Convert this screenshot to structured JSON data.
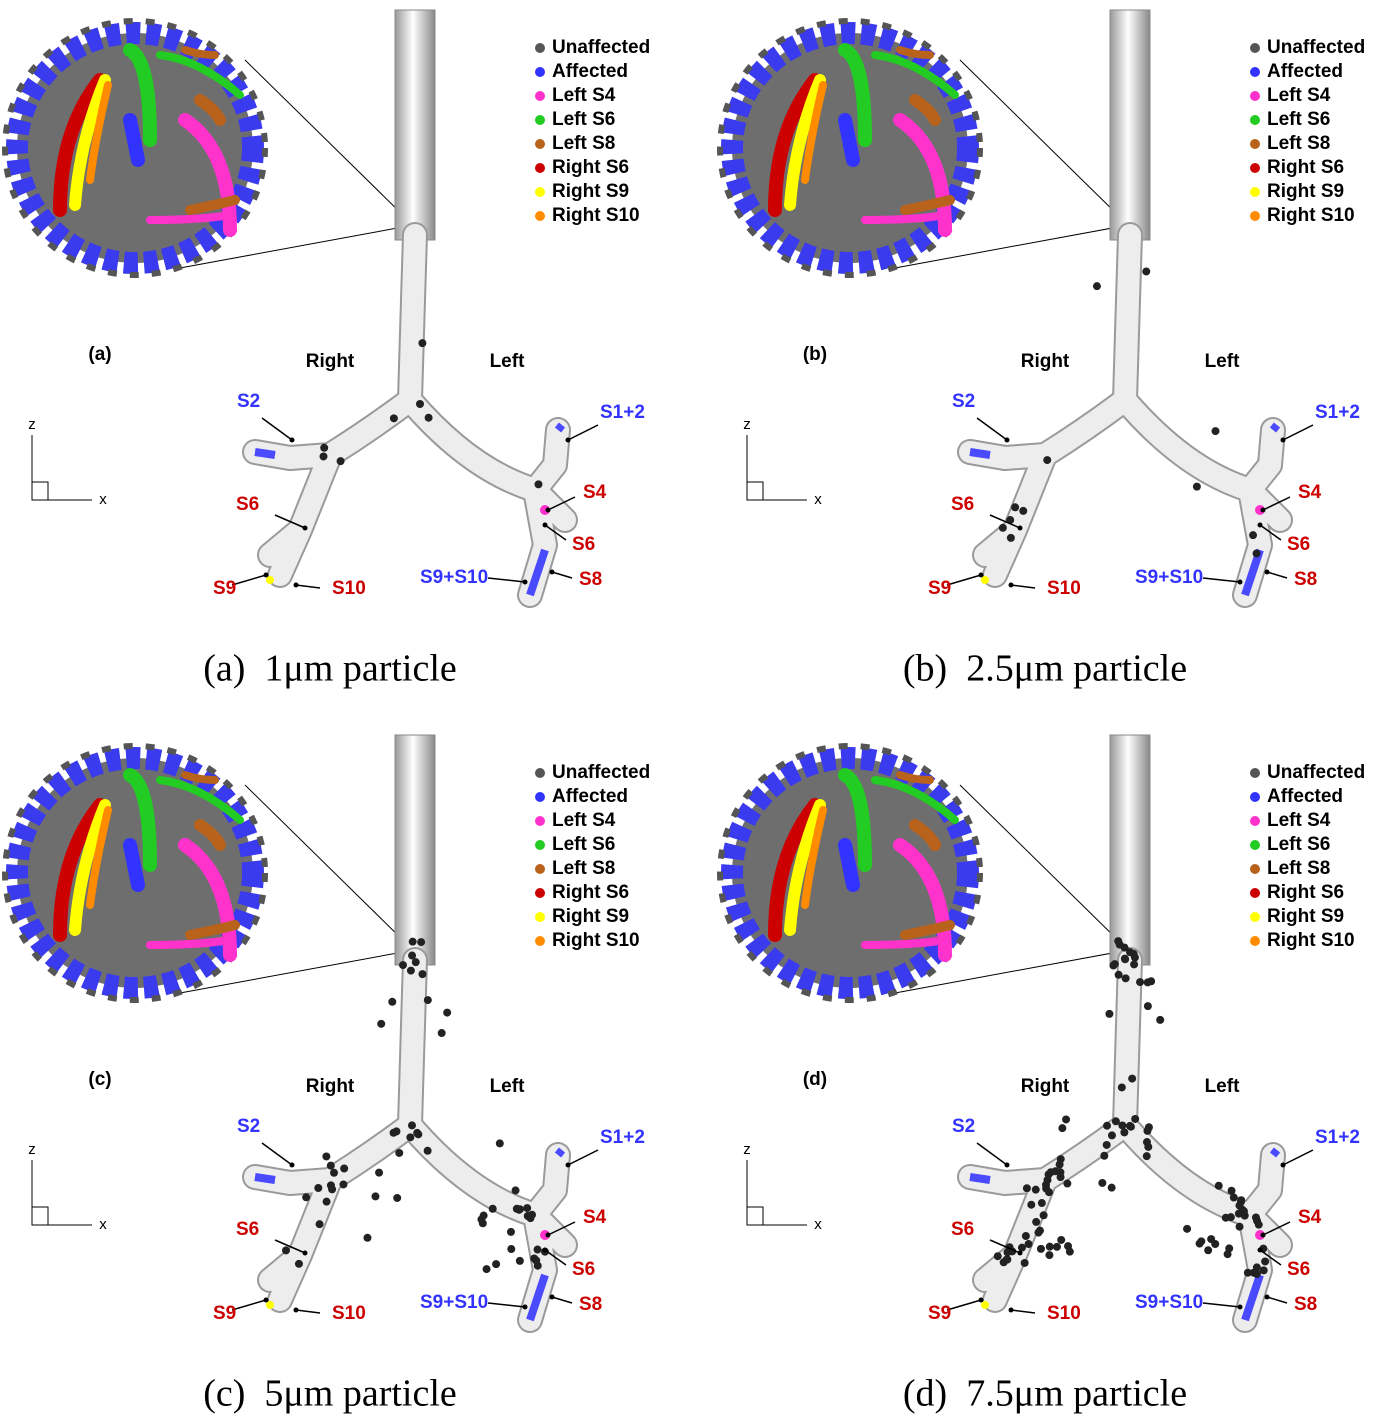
{
  "legend": [
    {
      "name": "Unaffected",
      "color": "#555555"
    },
    {
      "name": "Affected",
      "color": "#3333ff"
    },
    {
      "name": "Left S4",
      "color": "#ff33cc"
    },
    {
      "name": "Left S6",
      "color": "#22cc22"
    },
    {
      "name": "Left S8",
      "color": "#b8621b"
    },
    {
      "name": "Right S6",
      "color": "#cc0000"
    },
    {
      "name": "Right S9",
      "color": "#ffff00"
    },
    {
      "name": "Right S10",
      "color": "#ff8c00"
    }
  ],
  "sides": {
    "right": "Right",
    "left": "Left"
  },
  "segments": [
    {
      "label": "S2",
      "color": "#3333ff"
    },
    {
      "label": "S6",
      "color": "#cc0000"
    },
    {
      "label": "S9",
      "color": "#cc0000"
    },
    {
      "label": "S10",
      "color": "#cc0000"
    },
    {
      "label": "S1+2",
      "color": "#3333ff"
    },
    {
      "label": "S4",
      "color": "#cc0000"
    },
    {
      "label": "S6",
      "color": "#cc0000"
    },
    {
      "label": "S8",
      "color": "#cc0000"
    },
    {
      "label": "S9+S10",
      "color": "#3333ff"
    }
  ],
  "axes": {
    "z": "z",
    "x": "x"
  },
  "panels": [
    {
      "tag": "(a)",
      "caption": "(a)  1μm particle"
    },
    {
      "tag": "(b)",
      "caption": "(b)  2.5μm particle"
    },
    {
      "tag": "(c)",
      "caption": "(c)  5μm particle"
    },
    {
      "tag": "(d)",
      "caption": "(d)  7.5μm particle"
    }
  ]
}
